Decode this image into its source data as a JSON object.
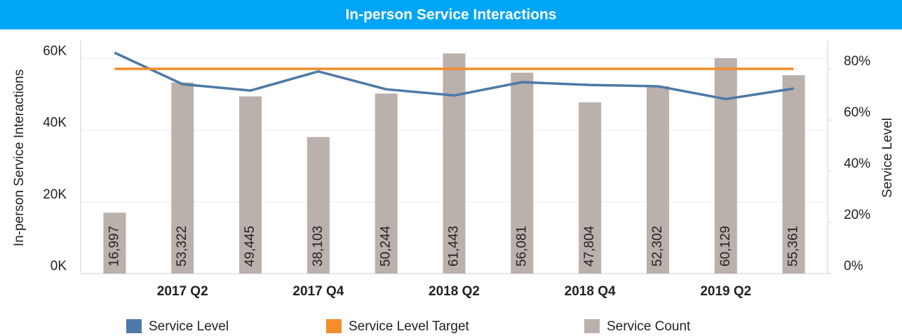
{
  "chart_data": {
    "type": "bar_line",
    "title": "In-person Service Interactions",
    "categories": [
      null,
      "2017 Q2",
      null,
      "2017 Q4",
      null,
      "2018 Q2",
      null,
      "2018 Q4",
      null,
      "2019 Q2",
      null
    ],
    "series": [
      {
        "name": "Service Level",
        "color": "#4e79a7",
        "type": "line",
        "axis": "y2",
        "values": [
          86.3,
          74,
          71.5,
          79,
          72,
          69.6,
          74.8,
          73.7,
          73.2,
          68.2,
          72.3
        ]
      },
      {
        "name": "Service Level Target",
        "color": "#f28e2b",
        "type": "line",
        "axis": "y2",
        "values": [
          80,
          80,
          80,
          80,
          80,
          80,
          80,
          80,
          80,
          80,
          80
        ]
      },
      {
        "name": "Service Count",
        "color": "#bab0ac",
        "type": "bar",
        "values": [
          16997,
          53322,
          49445,
          38103,
          50244,
          61443,
          56081,
          47804,
          52302,
          60129,
          55361
        ],
        "value_labels": [
          "16,997",
          "53,322",
          "49,445",
          "38,103",
          "50,244",
          "61,443",
          "56,081",
          "47,804",
          "52,302",
          "60,129",
          "55,361"
        ]
      }
    ],
    "ylabel": "In-person Service Interactions",
    "y2label": "Service Level",
    "ylim": [
      0,
      65000
    ],
    "yticks": [
      {
        "value": 0,
        "label": "0K"
      },
      {
        "value": 20000,
        "label": "20K"
      },
      {
        "value": 40000,
        "label": "40K"
      },
      {
        "value": 60000,
        "label": "60K"
      }
    ],
    "y2lim": [
      0,
      91
    ],
    "y2ticks": [
      {
        "value": 0,
        "label": "0%"
      },
      {
        "value": 20,
        "label": "20%"
      },
      {
        "value": 40,
        "label": "40%"
      },
      {
        "value": 60,
        "label": "60%"
      },
      {
        "value": 80,
        "label": "80%"
      }
    ],
    "grid": true,
    "legend": "bottom"
  }
}
